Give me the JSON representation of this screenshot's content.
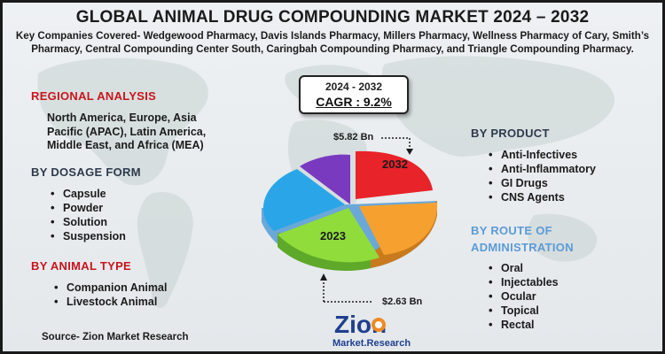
{
  "title": "GLOBAL ANIMAL DRUG COMPOUNDING MARKET 2024 – 2032",
  "companies": "Key Companies Covered- Wedgewood Pharmacy, Davis Islands Pharmacy, Millers Pharmacy, Wellness Pharmacy of Cary, Smith’s Pharmacy, Central Compounding Center South, Caringbah Compounding Pharmacy, and Triangle Compounding Pharmacy.",
  "cagr": {
    "years": "2024 - 2032",
    "value": "CAGR : 9.2%"
  },
  "regional": {
    "heading": "REGIONAL ANALYSIS",
    "text": "North America, Europe, Asia Pacific (APAC), Latin America, Middle East, and Africa (MEA)"
  },
  "dosage": {
    "heading": "BY DOSAGE FORM",
    "items": [
      "Capsule",
      "Powder",
      "Solution",
      "Suspension"
    ]
  },
  "animal": {
    "heading": "BY ANIMAL TYPE",
    "items": [
      "Companion Animal",
      "Livestock Animal"
    ]
  },
  "product": {
    "heading": "BY PRODUCT",
    "items": [
      "Anti-Infectives",
      "Anti-Inflammatory",
      "GI Drugs",
      "CNS Agents"
    ]
  },
  "route": {
    "heading_line1": "BY ROUTE OF",
    "heading_line2": "ADMINISTRATION",
    "items": [
      "Oral",
      "Injectables",
      "Ocular",
      "Topical",
      "Rectal"
    ]
  },
  "pie": {
    "label_2032": "2032",
    "label_2023": "2023",
    "value_2032": "$5.82 Bn",
    "value_2023": "$2.63 Bn",
    "colors": {
      "red": "#e8232a",
      "orange": "#f6a12f",
      "green": "#8fdc3b",
      "blue": "#2aa6e8",
      "purple": "#7a3ac0"
    }
  },
  "logo": {
    "word": "Zion",
    "sub": "Market.Research"
  },
  "source": "Source- Zion Market Research"
}
